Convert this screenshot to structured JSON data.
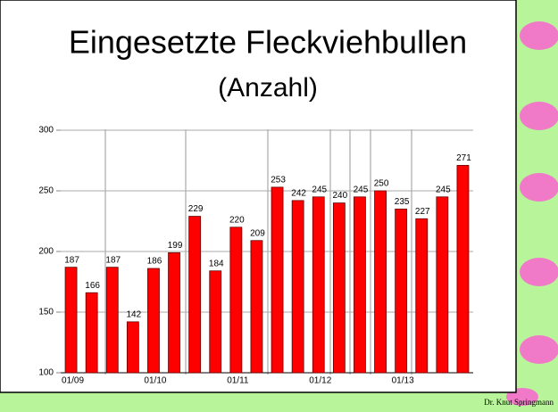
{
  "chart_data": {
    "type": "bar",
    "title": "Eingesetzte Fleckviehbullen",
    "subtitle": "(Anzahl)",
    "categories": [
      "01/09",
      null,
      null,
      null,
      "01/10",
      null,
      null,
      null,
      "01/11",
      null,
      null,
      null,
      "01/12",
      null,
      null,
      null,
      "01/13",
      null,
      null,
      null
    ],
    "values": [
      187,
      166,
      187,
      142,
      186,
      199,
      229,
      184,
      220,
      209,
      253,
      242,
      245,
      240,
      245,
      250,
      235,
      227,
      245,
      271
    ],
    "color": "#ff0000",
    "ylim": [
      100,
      300
    ],
    "yticks": [
      100,
      150,
      200,
      250,
      300
    ],
    "grid": true
  },
  "author": "Dr. Knut Springmann"
}
